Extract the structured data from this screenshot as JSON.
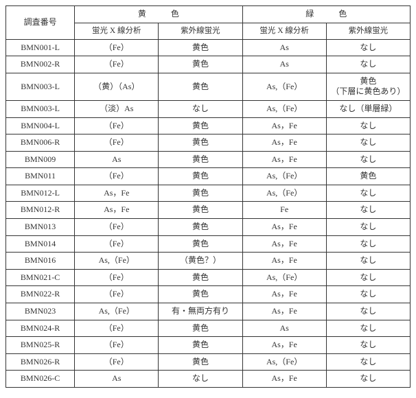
{
  "header": {
    "col_id": "調査番号",
    "group_yellow": "黄　色",
    "group_green": "緑　色",
    "sub_xrf": "蛍光 X 線分析",
    "sub_uv": "紫外線蛍光"
  },
  "rows": [
    {
      "id": "BMN001-L",
      "y_xrf": "（Fe）",
      "y_uv": "黄色",
      "g_xrf": "As",
      "g_uv": "なし"
    },
    {
      "id": "BMN002-R",
      "y_xrf": "（Fe）",
      "y_uv": "黄色",
      "g_xrf": "As",
      "g_uv": "なし"
    },
    {
      "id": "BMN003-L",
      "y_xrf": "（黄）（As）",
      "y_uv": "黄色",
      "g_xrf": "As,（Fe）",
      "g_uv": "黄色\n（下層に黄色あり）"
    },
    {
      "id": "BMN003-L",
      "y_xrf": "（淡）As",
      "y_uv": "なし",
      "g_xrf": "As,（Fe）",
      "g_uv": "なし（単層緑）"
    },
    {
      "id": "BMN004-L",
      "y_xrf": "（Fe）",
      "y_uv": "黄色",
      "g_xrf": "As，Fe",
      "g_uv": "なし"
    },
    {
      "id": "BMN006-R",
      "y_xrf": "（Fe）",
      "y_uv": "黄色",
      "g_xrf": "As，Fe",
      "g_uv": "なし"
    },
    {
      "id": "BMN009",
      "y_xrf": "As",
      "y_uv": "黄色",
      "g_xrf": "As，Fe",
      "g_uv": "なし"
    },
    {
      "id": "BMN011",
      "y_xrf": "（Fe）",
      "y_uv": "黄色",
      "g_xrf": "As,（Fe）",
      "g_uv": "黄色"
    },
    {
      "id": "BMN012-L",
      "y_xrf": "As，Fe",
      "y_uv": "黄色",
      "g_xrf": "As,（Fe）",
      "g_uv": "なし"
    },
    {
      "id": "BMN012-R",
      "y_xrf": "As，Fe",
      "y_uv": "黄色",
      "g_xrf": "Fe",
      "g_uv": "なし"
    },
    {
      "id": "BMN013",
      "y_xrf": "（Fe）",
      "y_uv": "黄色",
      "g_xrf": "As，Fe",
      "g_uv": "なし"
    },
    {
      "id": "BMN014",
      "y_xrf": "（Fe）",
      "y_uv": "黄色",
      "g_xrf": "As，Fe",
      "g_uv": "なし"
    },
    {
      "id": "BMN016",
      "y_xrf": "As,（Fe）",
      "y_uv": "（黄色？）",
      "g_xrf": "As，Fe",
      "g_uv": "なし"
    },
    {
      "id": "BMN021-C",
      "y_xrf": "（Fe）",
      "y_uv": "黄色",
      "g_xrf": "As,（Fe）",
      "g_uv": "なし"
    },
    {
      "id": "BMN022-R",
      "y_xrf": "（Fe）",
      "y_uv": "黄色",
      "g_xrf": "As，Fe",
      "g_uv": "なし"
    },
    {
      "id": "BMN023",
      "y_xrf": "As,（Fe）",
      "y_uv": "有・無両方有り",
      "g_xrf": "As，Fe",
      "g_uv": "なし"
    },
    {
      "id": "BMN024-R",
      "y_xrf": "（Fe）",
      "y_uv": "黄色",
      "g_xrf": "As",
      "g_uv": "なし"
    },
    {
      "id": "BMN025-R",
      "y_xrf": "（Fe）",
      "y_uv": "黄色",
      "g_xrf": "As，Fe",
      "g_uv": "なし"
    },
    {
      "id": "BMN026-R",
      "y_xrf": "（Fe）",
      "y_uv": "黄色",
      "g_xrf": "As,（Fe）",
      "g_uv": "なし"
    },
    {
      "id": "BMN026-C",
      "y_xrf": "As",
      "y_uv": "なし",
      "g_xrf": "As，Fe",
      "g_uv": "なし"
    }
  ]
}
